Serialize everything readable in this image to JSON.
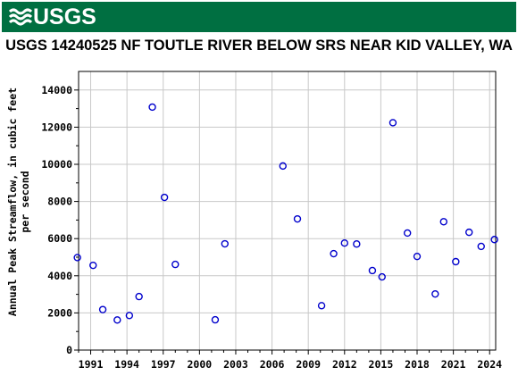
{
  "banner": {
    "agency": "USGS",
    "color": "#006F41"
  },
  "chart_data": {
    "type": "scatter",
    "title": "USGS 14240525 NF TOUTLE RIVER BELOW SRS NEAR KID VALLEY, WA",
    "xlabel": "",
    "ylabel_line1": "Annual Peak Streamflow, in cubic feet",
    "ylabel_line2": "per second",
    "xlim": [
      1990,
      2024.5
    ],
    "ylim": [
      0,
      15000
    ],
    "x_ticks": [
      1991,
      1994,
      1997,
      2000,
      2003,
      2006,
      2009,
      2012,
      2015,
      2018,
      2021,
      2024
    ],
    "x_minor_step": 1,
    "y_ticks": [
      0,
      2000,
      4000,
      6000,
      8000,
      10000,
      12000,
      14000
    ],
    "grid": true,
    "marker": "open-circle",
    "marker_color": "#0000CC",
    "points": [
      {
        "x": 1989.9,
        "y": 4980
      },
      {
        "x": 1991.2,
        "y": 4560
      },
      {
        "x": 1992.0,
        "y": 2180
      },
      {
        "x": 1993.2,
        "y": 1620
      },
      {
        "x": 1994.2,
        "y": 1860
      },
      {
        "x": 1995.0,
        "y": 2880
      },
      {
        "x": 1996.1,
        "y": 13080
      },
      {
        "x": 1997.1,
        "y": 8220
      },
      {
        "x": 1998.0,
        "y": 4610
      },
      {
        "x": 2001.3,
        "y": 1630
      },
      {
        "x": 2002.1,
        "y": 5720
      },
      {
        "x": 2006.9,
        "y": 9910
      },
      {
        "x": 2008.1,
        "y": 7060
      },
      {
        "x": 2010.1,
        "y": 2390
      },
      {
        "x": 2011.1,
        "y": 5190
      },
      {
        "x": 2012.0,
        "y": 5760
      },
      {
        "x": 2013.0,
        "y": 5710
      },
      {
        "x": 2014.3,
        "y": 4280
      },
      {
        "x": 2015.1,
        "y": 3940
      },
      {
        "x": 2016.0,
        "y": 12240
      },
      {
        "x": 2017.2,
        "y": 6300
      },
      {
        "x": 2018.0,
        "y": 5040
      },
      {
        "x": 2019.5,
        "y": 3020
      },
      {
        "x": 2020.2,
        "y": 6910
      },
      {
        "x": 2021.2,
        "y": 4760
      },
      {
        "x": 2022.3,
        "y": 6340
      },
      {
        "x": 2023.3,
        "y": 5580
      },
      {
        "x": 2024.4,
        "y": 5950
      }
    ]
  }
}
